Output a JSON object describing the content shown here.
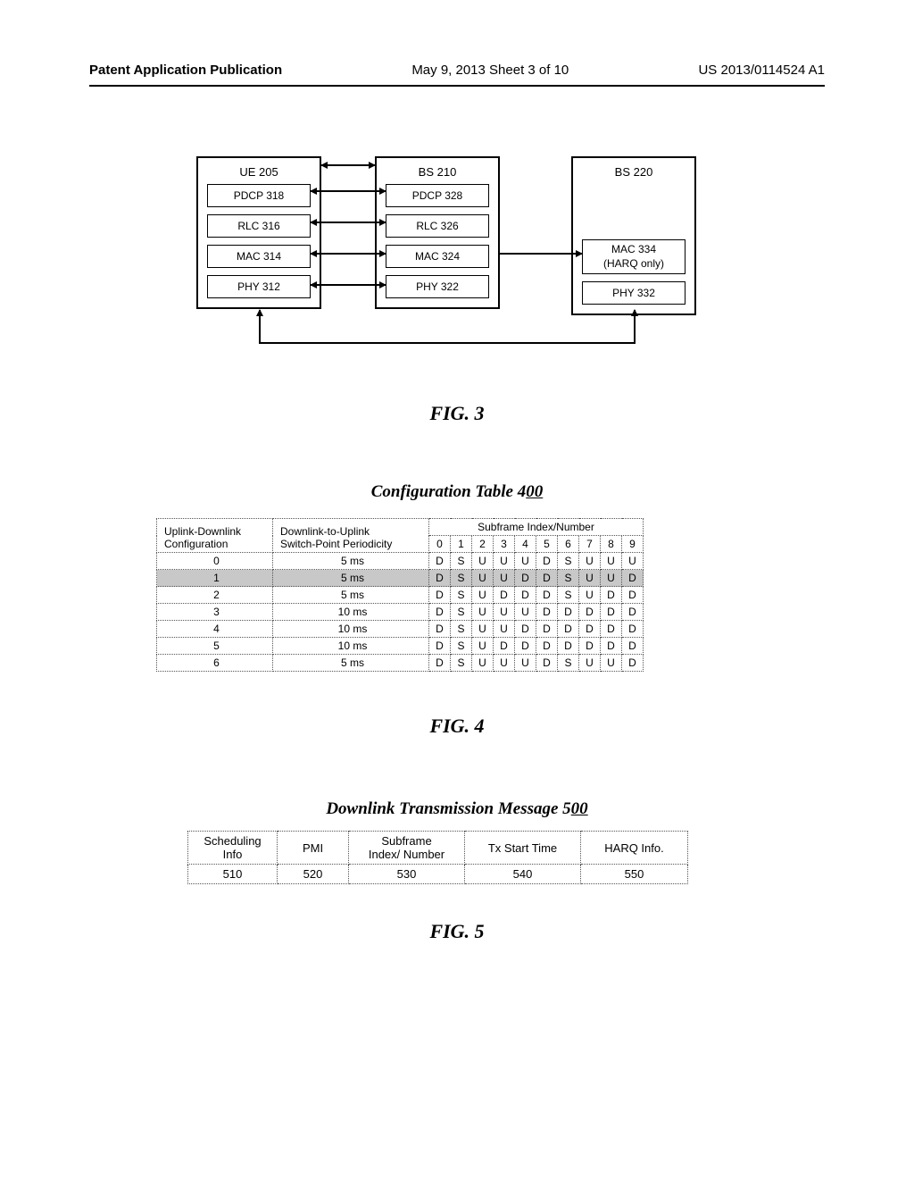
{
  "header": {
    "left": "Patent Application Publication",
    "center": "May 9, 2013  Sheet 3 of 10",
    "right": "US 2013/0114524 A1"
  },
  "fig3": {
    "label": "FIG.  3",
    "ue": {
      "title": "UE 205",
      "layers": [
        "PDCP 318",
        "RLC 316",
        "MAC 314",
        "PHY 312"
      ]
    },
    "bs1": {
      "title": "BS 210",
      "layers": [
        "PDCP 328",
        "RLC 326",
        "MAC 324",
        "PHY 322"
      ]
    },
    "bs2": {
      "title": "BS 220",
      "mac": "MAC 334\n(HARQ only)",
      "phy": "PHY 332"
    }
  },
  "fig4": {
    "caption_prefix": "Configuration Table 4",
    "caption_suffix": "00",
    "label": "FIG.  4",
    "headers": {
      "config": "Uplink-Downlink\nConfiguration",
      "period": "Downlink-to-Uplink\nSwitch-Point Periodicity",
      "subframe": "Subframe Index/Number"
    },
    "subframe_indices": [
      "0",
      "1",
      "2",
      "3",
      "4",
      "5",
      "6",
      "7",
      "8",
      "9"
    ],
    "rows": [
      {
        "config": "0",
        "period": "5 ms",
        "cells": [
          "D",
          "S",
          "U",
          "U",
          "U",
          "D",
          "S",
          "U",
          "U",
          "U"
        ],
        "shaded": false
      },
      {
        "config": "1",
        "period": "5 ms",
        "cells": [
          "D",
          "S",
          "U",
          "U",
          "D",
          "D",
          "S",
          "U",
          "U",
          "D"
        ],
        "shaded": true
      },
      {
        "config": "2",
        "period": "5 ms",
        "cells": [
          "D",
          "S",
          "U",
          "D",
          "D",
          "D",
          "S",
          "U",
          "D",
          "D"
        ],
        "shaded": false
      },
      {
        "config": "3",
        "period": "10 ms",
        "cells": [
          "D",
          "S",
          "U",
          "U",
          "U",
          "D",
          "D",
          "D",
          "D",
          "D"
        ],
        "shaded": false
      },
      {
        "config": "4",
        "period": "10 ms",
        "cells": [
          "D",
          "S",
          "U",
          "U",
          "D",
          "D",
          "D",
          "D",
          "D",
          "D"
        ],
        "shaded": false
      },
      {
        "config": "5",
        "period": "10 ms",
        "cells": [
          "D",
          "S",
          "U",
          "D",
          "D",
          "D",
          "D",
          "D",
          "D",
          "D"
        ],
        "shaded": false
      },
      {
        "config": "6",
        "period": "5 ms",
        "cells": [
          "D",
          "S",
          "U",
          "U",
          "U",
          "D",
          "S",
          "U",
          "U",
          "D"
        ],
        "shaded": false
      }
    ]
  },
  "fig5": {
    "caption_prefix": "Downlink Transmission Message 5",
    "caption_suffix": "00",
    "label": "FIG.  5",
    "headers": [
      "Scheduling\nInfo",
      "PMI",
      "Subframe\nIndex/ Number",
      "Tx Start Time",
      "HARQ Info."
    ],
    "values": [
      "510",
      "520",
      "530",
      "540",
      "550"
    ]
  }
}
